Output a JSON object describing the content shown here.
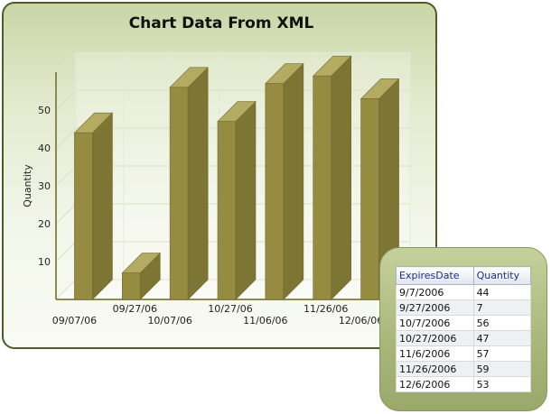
{
  "chart_data": {
    "type": "bar",
    "title": "Chart Data From XML",
    "ylabel": "Quantity",
    "xlabel": "",
    "ylim": [
      0,
      60
    ],
    "yticks": [
      10,
      20,
      30,
      40,
      50
    ],
    "categories": [
      "09/07/06",
      "09/27/06",
      "10/07/06",
      "10/27/06",
      "11/06/06",
      "11/26/06",
      "12/06/06"
    ],
    "values": [
      44,
      7,
      56,
      47,
      57,
      59,
      53
    ],
    "bar_color": "#958c42",
    "grid": true,
    "legend": "none"
  },
  "table": {
    "columns": [
      "ExpiresDate",
      "Quantity"
    ],
    "rows": [
      [
        "9/7/2006",
        "44"
      ],
      [
        "9/27/2006",
        "7"
      ],
      [
        "10/7/2006",
        "56"
      ],
      [
        "10/27/2006",
        "47"
      ],
      [
        "11/6/2006",
        "57"
      ],
      [
        "11/26/2006",
        "59"
      ],
      [
        "12/6/2006",
        "53"
      ]
    ]
  }
}
